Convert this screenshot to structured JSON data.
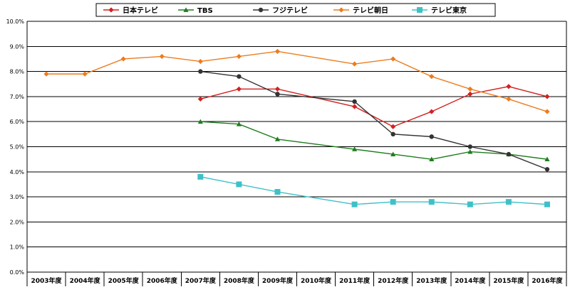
{
  "chart_data": {
    "type": "line",
    "categories": [
      "2003年度",
      "2004年度",
      "2005年度",
      "2006年度",
      "2007年度",
      "2008年度",
      "2009年度",
      "2010年度",
      "2011年度",
      "2012年度",
      "2013年度",
      "2014年度",
      "2015年度",
      "2016年度"
    ],
    "y_ticks": [
      "0.0%",
      "1.0%",
      "2.0%",
      "3.0%",
      "4.0%",
      "5.0%",
      "6.0%",
      "7.0%",
      "8.0%",
      "9.0%",
      "10.0%"
    ],
    "ylim": [
      0,
      10
    ],
    "grid": "horizontal",
    "legend_position": "top",
    "series": [
      {
        "name": "日本テレビ",
        "color": "#d42020",
        "marker": "diamond",
        "values": [
          null,
          null,
          null,
          null,
          6.9,
          7.3,
          7.3,
          null,
          6.6,
          5.8,
          6.4,
          7.1,
          7.4,
          7.0
        ]
      },
      {
        "name": "TBS",
        "color": "#1e7d1e",
        "marker": "triangle",
        "values": [
          null,
          null,
          null,
          null,
          6.0,
          5.9,
          5.3,
          null,
          4.9,
          4.7,
          4.5,
          4.8,
          4.7,
          4.5
        ]
      },
      {
        "name": "フジテレビ",
        "color": "#333333",
        "marker": "circle",
        "values": [
          null,
          null,
          null,
          null,
          8.0,
          7.8,
          7.1,
          null,
          6.8,
          5.5,
          5.4,
          5.0,
          4.7,
          4.1
        ]
      },
      {
        "name": "テレビ朝日",
        "color": "#ec7c1e",
        "marker": "diamond",
        "values": [
          7.9,
          7.9,
          8.5,
          8.6,
          8.4,
          8.6,
          8.8,
          null,
          8.3,
          8.5,
          7.8,
          7.3,
          6.9,
          6.4
        ]
      },
      {
        "name": "テレビ東京",
        "color": "#3fc0c8",
        "marker": "square",
        "values": [
          null,
          null,
          null,
          null,
          3.8,
          3.5,
          3.2,
          null,
          2.7,
          2.8,
          2.8,
          2.7,
          2.8,
          2.7
        ]
      }
    ]
  }
}
